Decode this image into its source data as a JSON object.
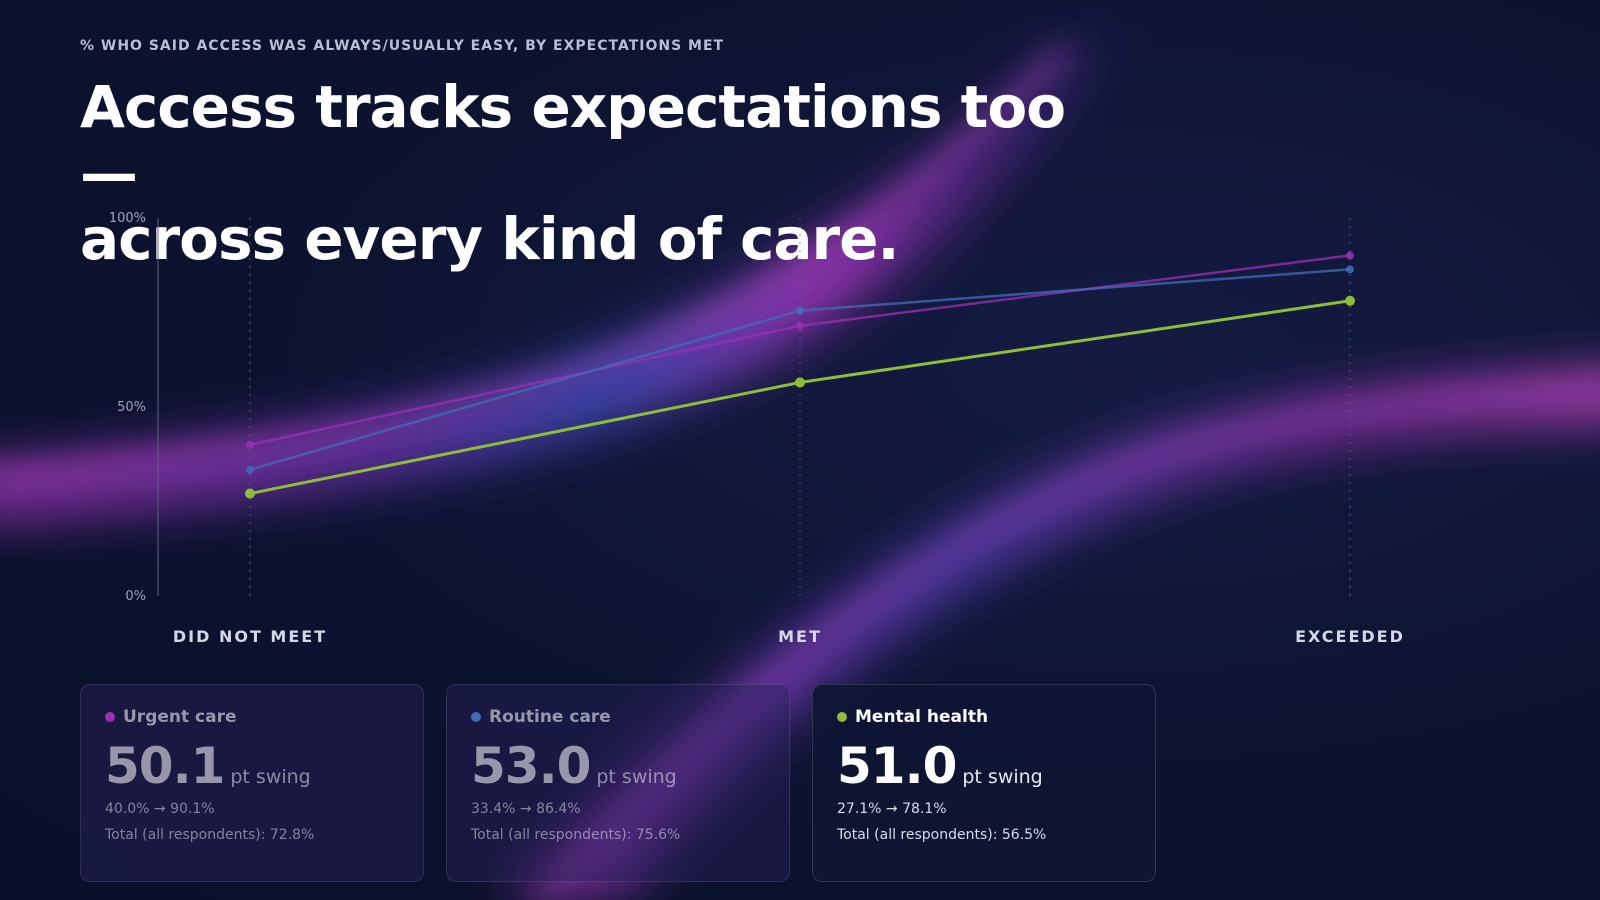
{
  "eyebrow": "% WHO SAID ACCESS WAS ALWAYS/USUALLY EASY, BY EXPECTATIONS MET",
  "title": {
    "line1": "Access tracks expectations too —",
    "line2": "across every kind of care."
  },
  "colors": {
    "background": "#0c1330",
    "urgent": "#9b2fb5",
    "routine": "#3f6db8",
    "mental": "#8fbd3a",
    "glow_magenta": "#c13ad6",
    "glow_blue": "#4a55d4"
  },
  "chart_data": {
    "type": "line",
    "categories": [
      "DID NOT MEET",
      "MET",
      "EXCEEDED"
    ],
    "ylim": [
      0,
      100
    ],
    "yticks": [
      "0%",
      "50%",
      "100%"
    ],
    "xlabel": "",
    "ylabel": "",
    "grid": "vertical dotted at categories",
    "series": [
      {
        "name": "Urgent care",
        "values": [
          40.0,
          71.5,
          90.1
        ],
        "color": "#9b2fb5"
      },
      {
        "name": "Routine care",
        "values": [
          33.4,
          75.5,
          86.4
        ],
        "color": "#3f6db8"
      },
      {
        "name": "Mental health",
        "values": [
          27.1,
          56.5,
          78.1
        ],
        "color": "#8fbd3a"
      }
    ]
  },
  "cards": [
    {
      "label": "Urgent care",
      "value": "50.1",
      "unit": "pt swing",
      "range": "40.0% → 90.1%",
      "total": "Total (all respondents): 72.8%",
      "color": "#9b2fb5",
      "state": "muted"
    },
    {
      "label": "Routine care",
      "value": "53.0",
      "unit": "pt swing",
      "range": "33.4% → 86.4%",
      "total": "Total (all respondents): 75.6%",
      "color": "#3f6db8",
      "state": "muted"
    },
    {
      "label": "Mental health",
      "value": "51.0",
      "unit": "pt swing",
      "range": "27.1% → 78.1%",
      "total": "Total (all respondents): 56.5%",
      "color": "#8fbd3a",
      "state": "active"
    }
  ]
}
